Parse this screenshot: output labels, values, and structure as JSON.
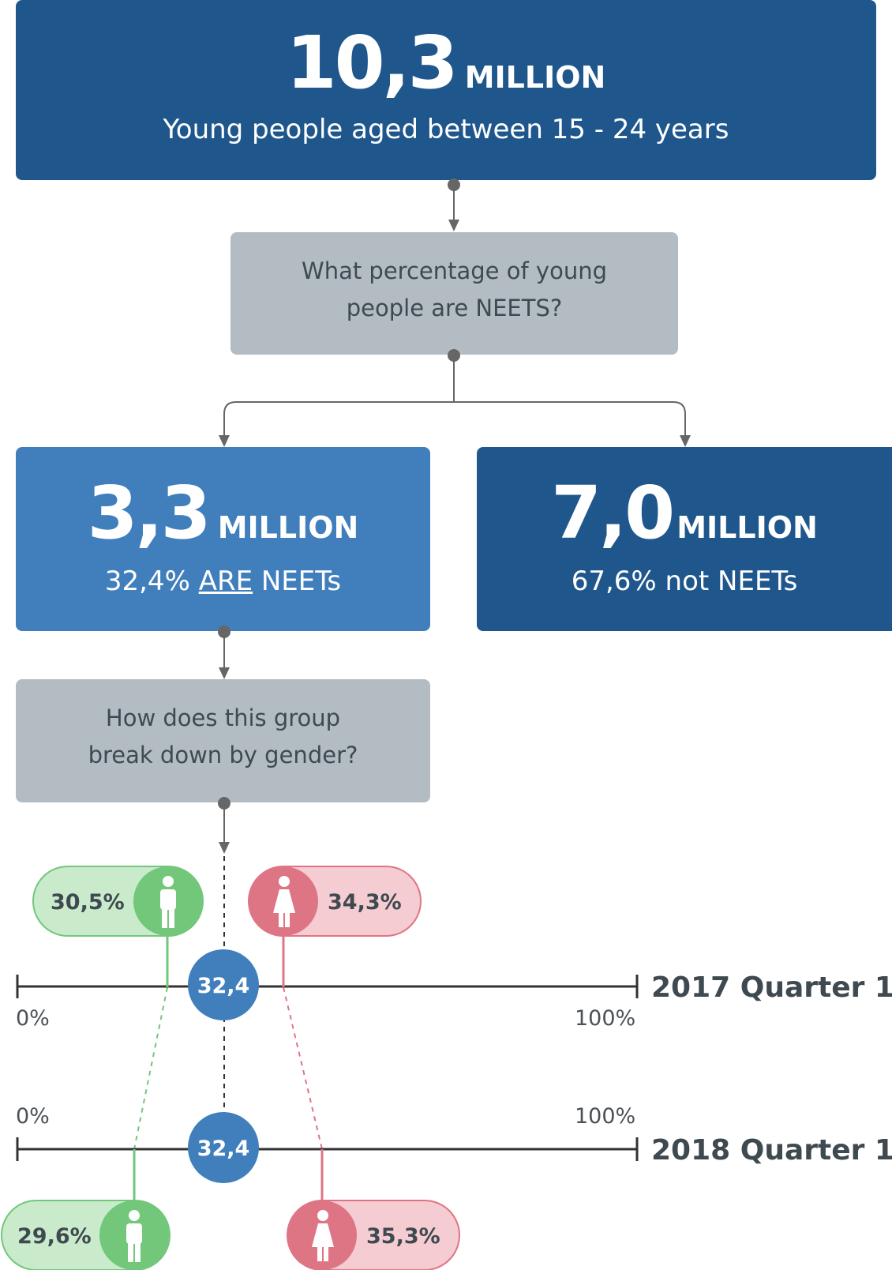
{
  "top": {
    "number": "10,3",
    "unit": "MILLION",
    "subtitle": "Young people aged between 15 - 24 years"
  },
  "question1": {
    "line1": "What percentage of young",
    "line2": "people are NEETS?"
  },
  "neets": {
    "number": "3,3",
    "unit": "MILLION",
    "pct": "32,4%",
    "are": "ARE",
    "label": "NEETs"
  },
  "not_neets": {
    "number": "7,0",
    "unit": "MILLION",
    "subtitle": "67,6% not NEETs"
  },
  "question2": {
    "line1": "How does this group",
    "line2": "break down by gender?"
  },
  "colors": {
    "dark_blue": "#1f578c",
    "mid_blue": "#417fbc",
    "grey": "#b3bcc3",
    "male": "#72c77a",
    "male_light": "#c9ebcb",
    "female": "#de7585",
    "female_light": "#f4ccd2"
  },
  "timelines": [
    {
      "label": "2017 Quarter 1",
      "scale_min": "0%",
      "scale_max": "100%",
      "overall": "32,4",
      "male": "30,5%",
      "female": "34,3%"
    },
    {
      "label": "2018 Quarter 1",
      "scale_min": "0%",
      "scale_max": "100%",
      "overall": "32,4",
      "male": "29,6%",
      "female": "35,3%"
    }
  ]
}
